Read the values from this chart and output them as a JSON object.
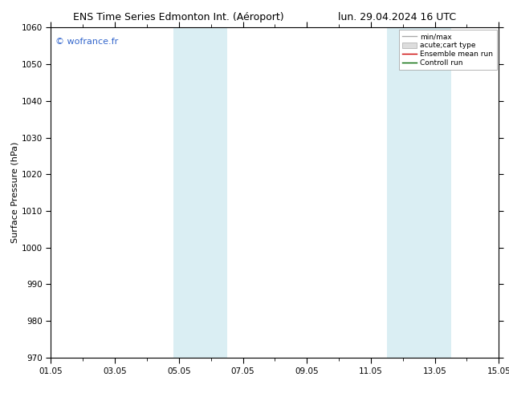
{
  "title_left": "ENS Time Series Edmonton Int. (Aéroport)",
  "title_right": "lun. 29.04.2024 16 UTC",
  "ylabel": "Surface Pressure (hPa)",
  "ylim": [
    970,
    1060
  ],
  "yticks": [
    970,
    980,
    990,
    1000,
    1010,
    1020,
    1030,
    1040,
    1050,
    1060
  ],
  "x_start": 0,
  "x_end": 14,
  "xtick_labels": [
    "01.05",
    "03.05",
    "05.05",
    "07.05",
    "09.05",
    "11.05",
    "13.05",
    "15.05"
  ],
  "xtick_positions_days": [
    0,
    2,
    4,
    6,
    8,
    10,
    12,
    14
  ],
  "minor_xtick_positions": [
    0,
    1,
    2,
    3,
    4,
    5,
    6,
    7,
    8,
    9,
    10,
    11,
    12,
    13,
    14
  ],
  "shaded_bands": [
    {
      "start_day": 3.83,
      "end_day": 5.5,
      "color": "#daeef3"
    },
    {
      "start_day": 10.5,
      "end_day": 12.5,
      "color": "#daeef3"
    }
  ],
  "background_color": "#ffffff",
  "plot_bg_color": "#ffffff",
  "watermark": "© wofrance.fr",
  "watermark_color": "#3366cc",
  "legend_entries": [
    {
      "label": "min/max",
      "color": "#aaaaaa",
      "lw": 1.0,
      "linestyle": "-"
    },
    {
      "label": "acute;cart type",
      "color": "#cccccc",
      "lw": 5,
      "linestyle": "-"
    },
    {
      "label": "Ensemble mean run",
      "color": "#cc0000",
      "lw": 1.0,
      "linestyle": "-"
    },
    {
      "label": "Controll run",
      "color": "#006600",
      "lw": 1.0,
      "linestyle": "-"
    }
  ],
  "title_fontsize": 9,
  "ylabel_fontsize": 8,
  "tick_fontsize": 7.5,
  "watermark_fontsize": 8,
  "legend_fontsize": 6.5
}
